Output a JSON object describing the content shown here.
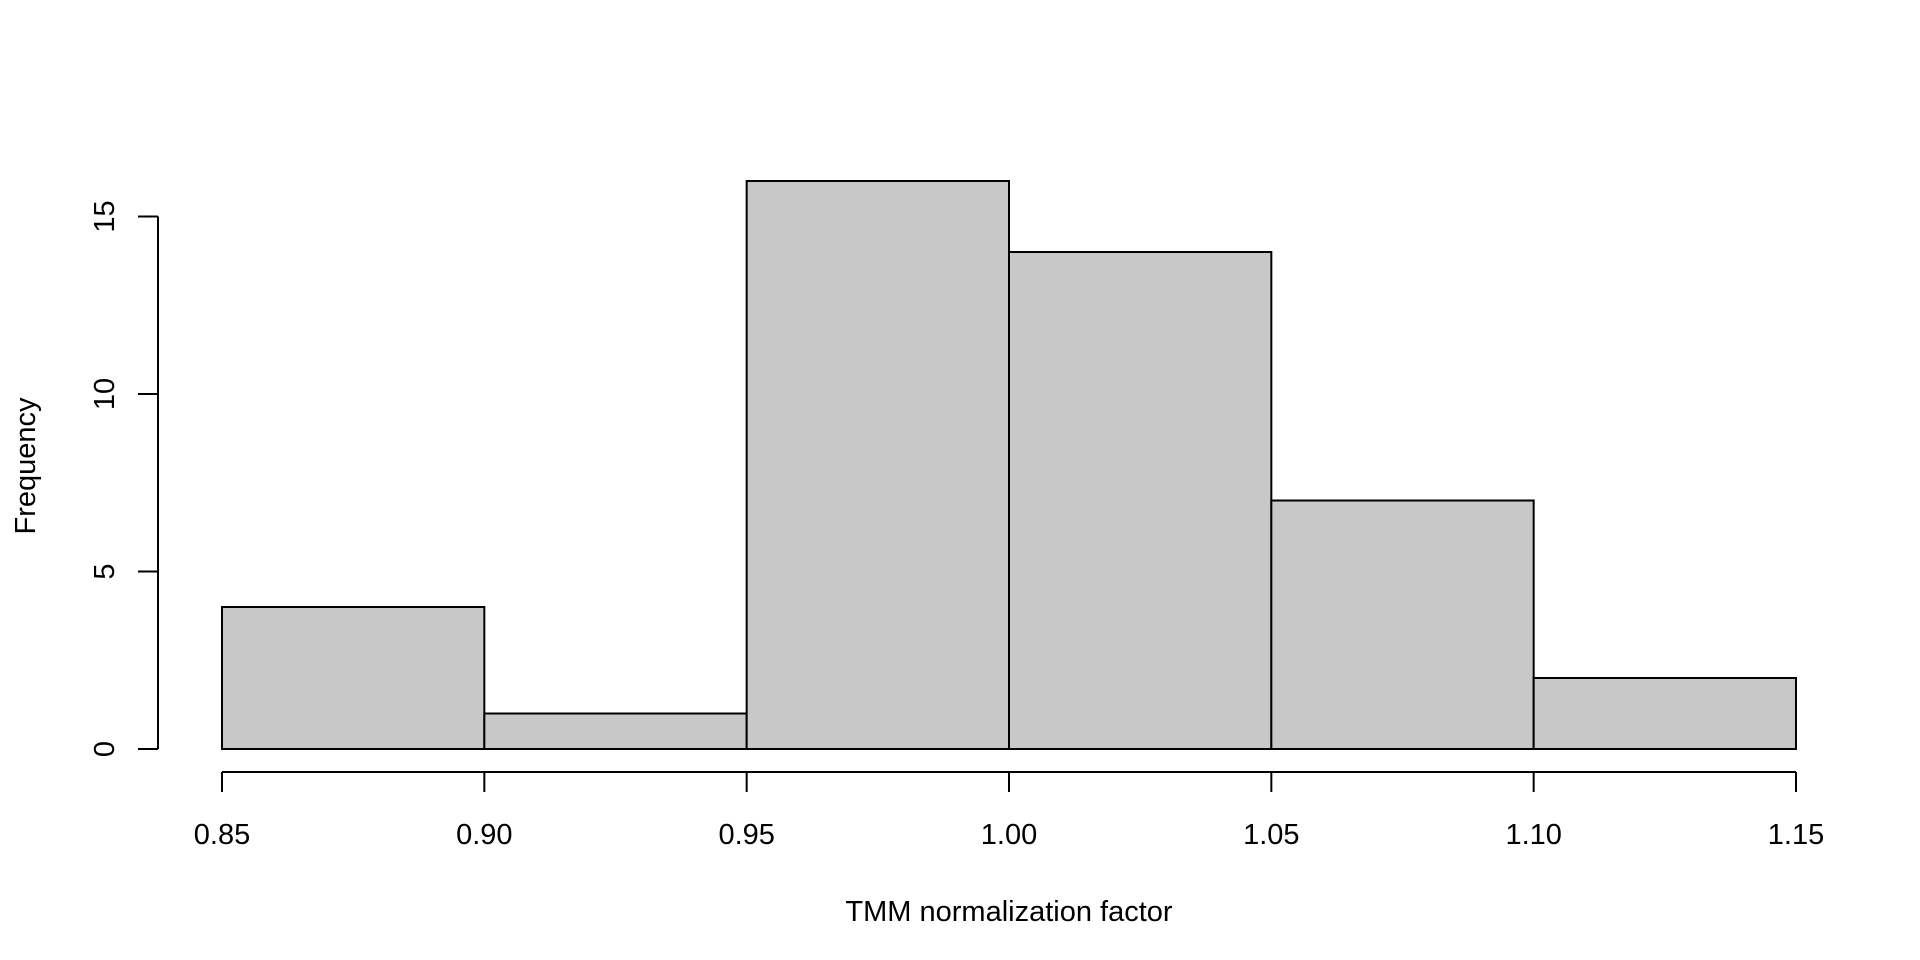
{
  "chart_data": {
    "type": "histogram",
    "title": "",
    "xlabel": "TMM normalization factor",
    "ylabel": "Frequency",
    "bin_edges": [
      0.85,
      0.9,
      0.95,
      1.0,
      1.05,
      1.1,
      1.15
    ],
    "counts": [
      4,
      1,
      16,
      14,
      7,
      2
    ],
    "xlim": [
      0.85,
      1.15
    ],
    "ylim": [
      0,
      16
    ],
    "x_ticks": [
      0.85,
      0.9,
      0.95,
      1.0,
      1.05,
      1.1,
      1.15
    ],
    "x_tick_labels": [
      "0.85",
      "0.90",
      "0.95",
      "1.00",
      "1.05",
      "1.10",
      "1.15"
    ],
    "y_ticks": [
      0,
      5,
      10,
      15
    ],
    "y_tick_labels": [
      "0",
      "5",
      "10",
      "15"
    ],
    "grid": false,
    "legend": "none",
    "bar_fill": "#c8c8c8",
    "bar_stroke": "#000000"
  }
}
